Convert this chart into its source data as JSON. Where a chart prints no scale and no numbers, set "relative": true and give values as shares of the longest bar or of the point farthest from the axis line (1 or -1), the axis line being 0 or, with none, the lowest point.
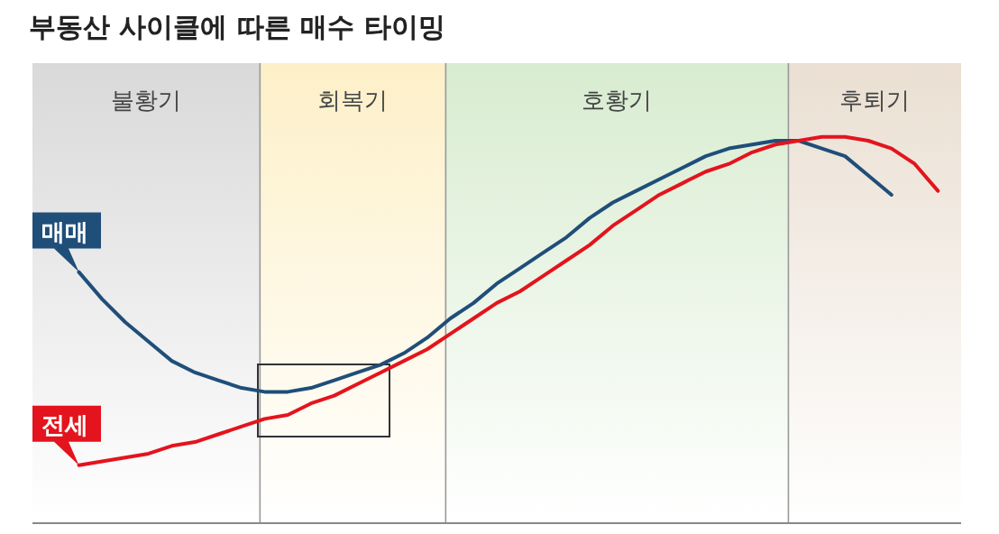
{
  "chart_data": {
    "type": "line",
    "title": "부동산 사이클에 따른 매수 타이밍",
    "relative": true,
    "categories": [
      null,
      null,
      null,
      null,
      null,
      null,
      null,
      null,
      null,
      null,
      null,
      null,
      null,
      null,
      null,
      null,
      null,
      null,
      null,
      null,
      null,
      null,
      null,
      null,
      null,
      null,
      null,
      null,
      null,
      null,
      null,
      null,
      null,
      null,
      null,
      null,
      null,
      null,
      null,
      null,
      null
    ],
    "annotations": [
      "불황기",
      "회복기",
      "호황기",
      "후퇴기"
    ],
    "series": [
      {
        "name": "매매",
        "color": "#1f4e79",
        "values": [
          null,
          null,
          0.65,
          0.58,
          0.52,
          0.47,
          0.42,
          0.39,
          0.37,
          0.35,
          0.34,
          0.34,
          0.35,
          0.37,
          0.39,
          0.41,
          0.44,
          0.48,
          0.53,
          0.57,
          0.62,
          0.66,
          0.7,
          0.74,
          0.79,
          0.83,
          0.86,
          0.89,
          0.92,
          0.95,
          0.97,
          0.98,
          0.99,
          0.99,
          0.97,
          0.95,
          0.9,
          0.85,
          null,
          null,
          null
        ]
      },
      {
        "name": "전세",
        "color": "#e3141d",
        "values": [
          null,
          null,
          0.15,
          0.16,
          0.17,
          0.18,
          0.2,
          0.21,
          0.23,
          0.25,
          0.27,
          0.28,
          0.31,
          0.33,
          0.36,
          0.39,
          0.42,
          0.45,
          0.49,
          0.53,
          0.57,
          0.6,
          0.64,
          0.68,
          0.72,
          0.77,
          0.81,
          0.85,
          0.88,
          0.91,
          0.93,
          0.96,
          0.98,
          0.99,
          1.0,
          1.0,
          0.99,
          0.97,
          0.93,
          0.86,
          null
        ]
      }
    ]
  }
}
